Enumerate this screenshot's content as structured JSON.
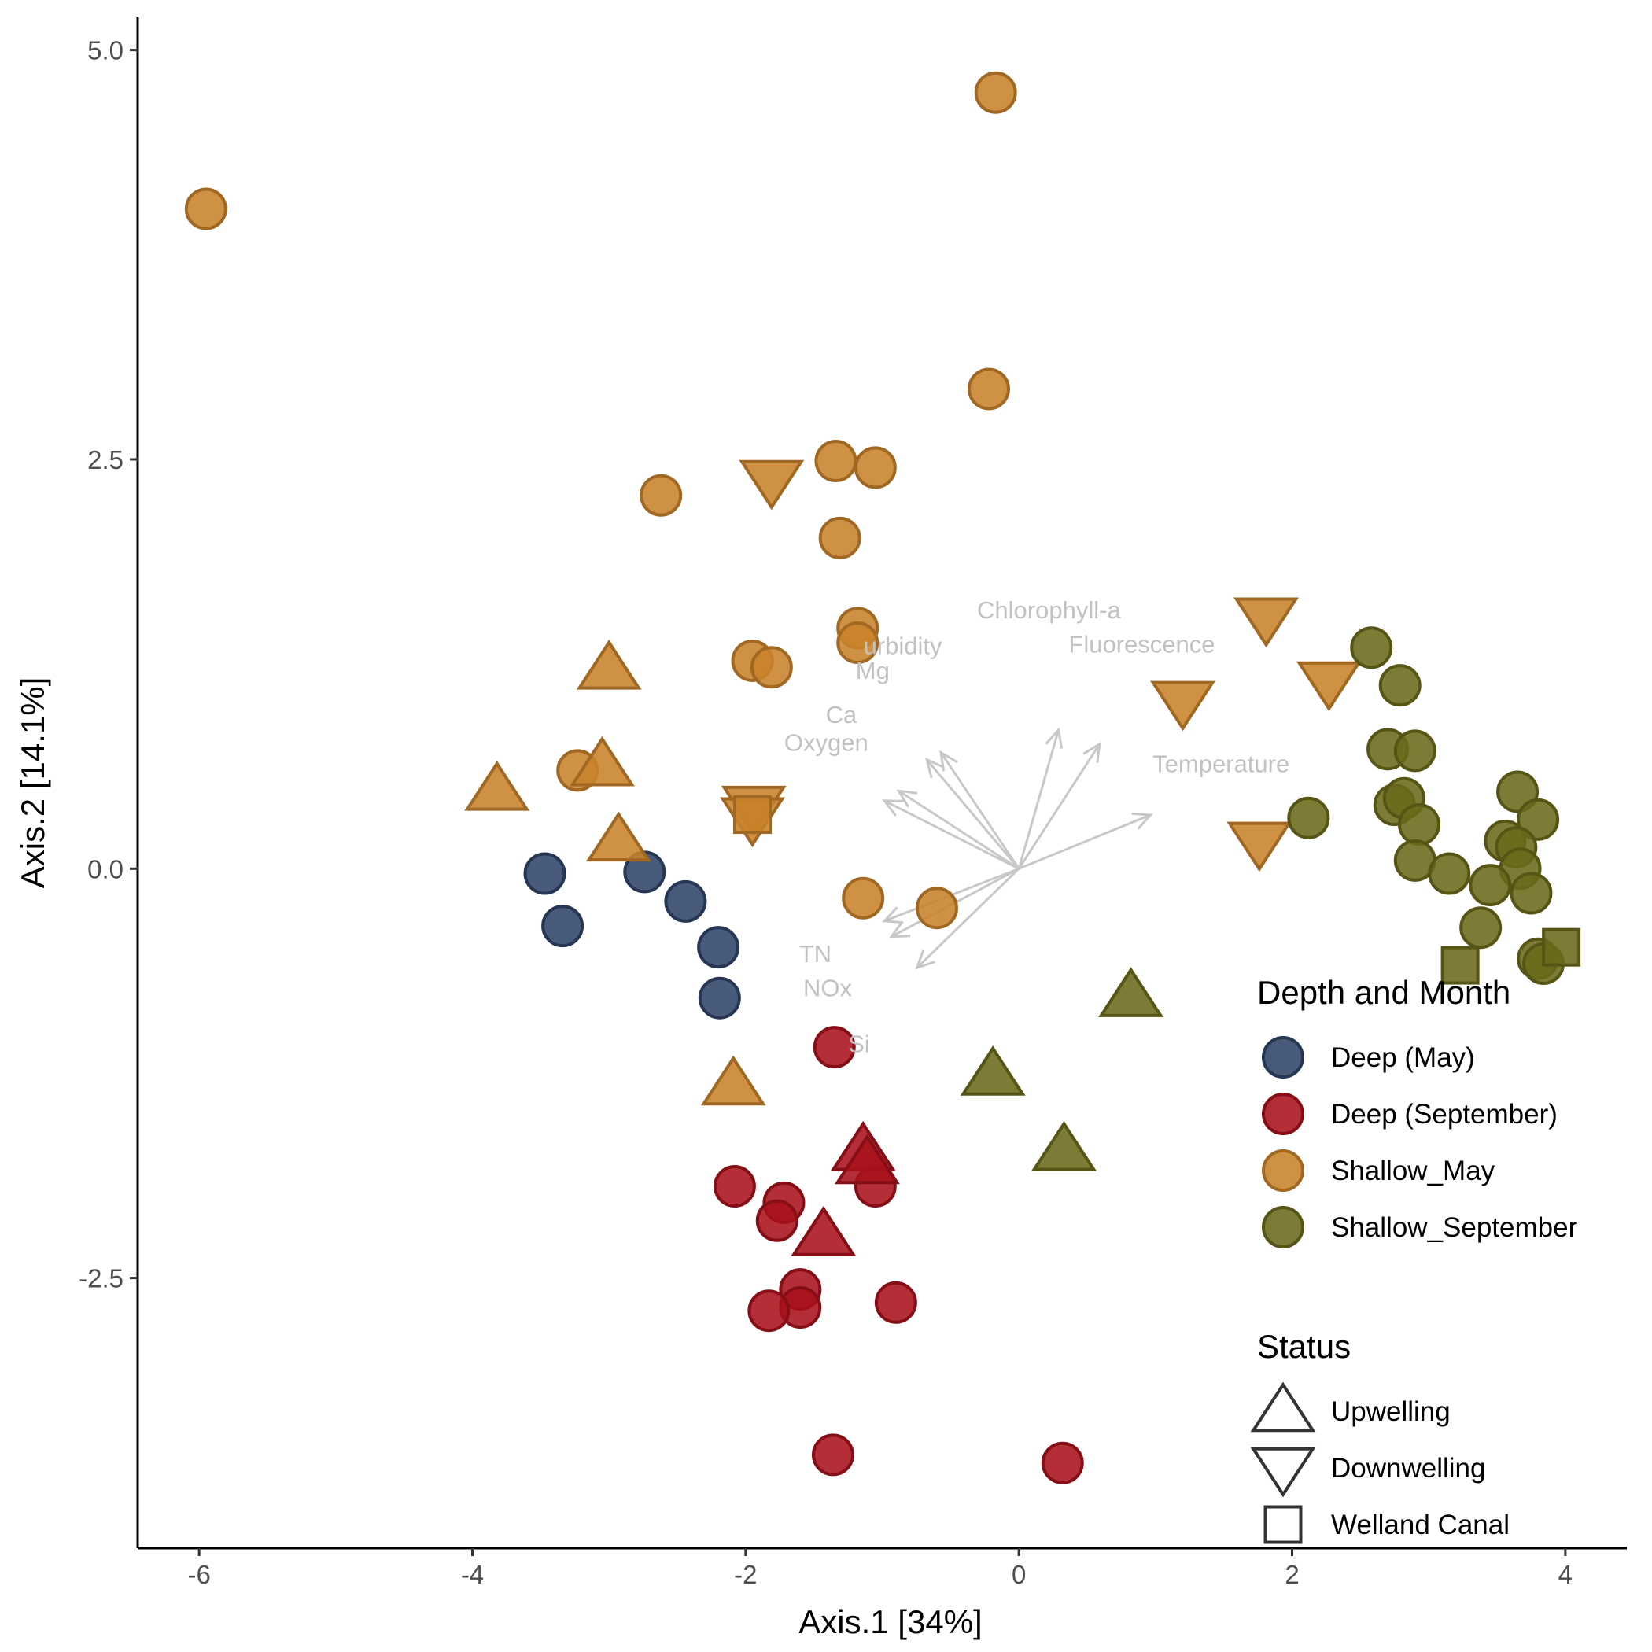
{
  "chart_data": {
    "type": "scatter",
    "xlabel": "Axis.1 [34%]",
    "ylabel": "Axis.2 [14.1%]",
    "xlim": [
      -6.45,
      4.45
    ],
    "ylim": [
      -4.15,
      5.2
    ],
    "xticks": [
      -6,
      -4,
      -2,
      0,
      2,
      4
    ],
    "xtick_labels": [
      "-6",
      "-4",
      "-2",
      "0",
      "2",
      "4"
    ],
    "yticks": [
      -2.5,
      0,
      2.5,
      5
    ],
    "ytick_labels": [
      "-2.5",
      "0.0",
      "2.5",
      "5.0"
    ],
    "grid": false,
    "legend_position": "bottom-right",
    "legend_groups": [
      {
        "title": "Depth and Month",
        "kind": "color",
        "entries": [
          {
            "label": "Deep (May)",
            "color": "#2f4468"
          },
          {
            "label": "Deep (September)",
            "color": "#a8111b"
          },
          {
            "label": "Shallow_May",
            "color": "#c8822a"
          },
          {
            "label": "Shallow_September",
            "color": "#6b6a1a"
          }
        ]
      },
      {
        "title": "Status",
        "kind": "shape",
        "entries": [
          {
            "label": "Upwelling",
            "shape": "triangle-up"
          },
          {
            "label": "Downwelling",
            "shape": "triangle-down"
          },
          {
            "label": "Welland Canal",
            "shape": "square"
          }
        ]
      }
    ],
    "series": [
      {
        "name": "Deep (May)",
        "color": "#2f4468",
        "points": [
          {
            "x": -3.47,
            "y": -0.03,
            "shape": "circle"
          },
          {
            "x": -3.34,
            "y": -0.35,
            "shape": "circle"
          },
          {
            "x": -2.74,
            "y": -0.02,
            "shape": "circle"
          },
          {
            "x": -2.44,
            "y": -0.2,
            "shape": "circle"
          },
          {
            "x": -2.2,
            "y": -0.48,
            "shape": "circle"
          },
          {
            "x": -2.19,
            "y": -0.79,
            "shape": "circle"
          }
        ]
      },
      {
        "name": "Deep (September)",
        "color": "#a8111b",
        "points": [
          {
            "x": -1.35,
            "y": -1.09,
            "shape": "circle"
          },
          {
            "x": -2.08,
            "y": -1.94,
            "shape": "circle"
          },
          {
            "x": -1.72,
            "y": -2.04,
            "shape": "circle"
          },
          {
            "x": -1.77,
            "y": -2.15,
            "shape": "circle"
          },
          {
            "x": -1.05,
            "y": -1.94,
            "shape": "circle"
          },
          {
            "x": -1.6,
            "y": -2.57,
            "shape": "circle"
          },
          {
            "x": -1.6,
            "y": -2.68,
            "shape": "circle"
          },
          {
            "x": -1.83,
            "y": -2.7,
            "shape": "circle"
          },
          {
            "x": -0.9,
            "y": -2.65,
            "shape": "circle"
          },
          {
            "x": -1.36,
            "y": -3.58,
            "shape": "circle"
          },
          {
            "x": 0.32,
            "y": -3.63,
            "shape": "circle"
          },
          {
            "x": -1.14,
            "y": -1.72,
            "shape": "triangle-up"
          },
          {
            "x": -1.11,
            "y": -1.8,
            "shape": "triangle-up"
          },
          {
            "x": -1.43,
            "y": -2.24,
            "shape": "triangle-up"
          }
        ]
      },
      {
        "name": "Shallow_May",
        "color": "#c8822a",
        "points": [
          {
            "x": -5.95,
            "y": 4.03,
            "shape": "circle"
          },
          {
            "x": -0.17,
            "y": 4.74,
            "shape": "circle"
          },
          {
            "x": -0.22,
            "y": 2.93,
            "shape": "circle"
          },
          {
            "x": -2.62,
            "y": 2.28,
            "shape": "circle"
          },
          {
            "x": -1.34,
            "y": 2.49,
            "shape": "circle"
          },
          {
            "x": -1.05,
            "y": 2.45,
            "shape": "circle"
          },
          {
            "x": -1.31,
            "y": 2.02,
            "shape": "circle"
          },
          {
            "x": -1.18,
            "y": 1.47,
            "shape": "circle"
          },
          {
            "x": -1.18,
            "y": 1.38,
            "shape": "circle"
          },
          {
            "x": -1.95,
            "y": 1.27,
            "shape": "circle"
          },
          {
            "x": -1.81,
            "y": 1.23,
            "shape": "circle"
          },
          {
            "x": -3.23,
            "y": 0.6,
            "shape": "circle"
          },
          {
            "x": -1.14,
            "y": -0.18,
            "shape": "circle"
          },
          {
            "x": -0.6,
            "y": -0.24,
            "shape": "circle"
          },
          {
            "x": -3.0,
            "y": 1.22,
            "shape": "triangle-up"
          },
          {
            "x": -3.05,
            "y": 0.63,
            "shape": "triangle-up"
          },
          {
            "x": -3.82,
            "y": 0.48,
            "shape": "triangle-up"
          },
          {
            "x": -2.93,
            "y": 0.17,
            "shape": "triangle-up"
          },
          {
            "x": -2.09,
            "y": -1.32,
            "shape": "triangle-up"
          },
          {
            "x": -1.81,
            "y": 2.37,
            "shape": "triangle-down"
          },
          {
            "x": -1.94,
            "y": 0.38,
            "shape": "triangle-down"
          },
          {
            "x": -1.95,
            "y": 0.31,
            "shape": "triangle-down"
          },
          {
            "x": 1.2,
            "y": 1.02,
            "shape": "triangle-down"
          },
          {
            "x": 1.81,
            "y": 1.53,
            "shape": "triangle-down"
          },
          {
            "x": 2.27,
            "y": 1.14,
            "shape": "triangle-down"
          },
          {
            "x": 1.76,
            "y": 0.16,
            "shape": "triangle-down"
          },
          {
            "x": -1.95,
            "y": 0.33,
            "shape": "square"
          }
        ]
      },
      {
        "name": "Shallow_September",
        "color": "#6b6a1a",
        "points": [
          {
            "x": 2.58,
            "y": 1.35,
            "shape": "circle"
          },
          {
            "x": 2.79,
            "y": 1.12,
            "shape": "circle"
          },
          {
            "x": 2.7,
            "y": 0.73,
            "shape": "circle"
          },
          {
            "x": 2.9,
            "y": 0.72,
            "shape": "circle"
          },
          {
            "x": 2.12,
            "y": 0.31,
            "shape": "circle"
          },
          {
            "x": 2.75,
            "y": 0.39,
            "shape": "circle"
          },
          {
            "x": 2.82,
            "y": 0.43,
            "shape": "circle"
          },
          {
            "x": 2.93,
            "y": 0.27,
            "shape": "circle"
          },
          {
            "x": 2.9,
            "y": 0.05,
            "shape": "circle"
          },
          {
            "x": 3.15,
            "y": -0.03,
            "shape": "circle"
          },
          {
            "x": 3.65,
            "y": 0.47,
            "shape": "circle"
          },
          {
            "x": 3.8,
            "y": 0.3,
            "shape": "circle"
          },
          {
            "x": 3.56,
            "y": 0.17,
            "shape": "circle"
          },
          {
            "x": 3.64,
            "y": 0.13,
            "shape": "circle"
          },
          {
            "x": 3.67,
            "y": 0.0,
            "shape": "circle"
          },
          {
            "x": 3.45,
            "y": -0.1,
            "shape": "circle"
          },
          {
            "x": 3.75,
            "y": -0.15,
            "shape": "circle"
          },
          {
            "x": 3.38,
            "y": -0.36,
            "shape": "circle"
          },
          {
            "x": 3.8,
            "y": -0.55,
            "shape": "circle"
          },
          {
            "x": 3.84,
            "y": -0.58,
            "shape": "circle"
          },
          {
            "x": 0.82,
            "y": -0.78,
            "shape": "triangle-up"
          },
          {
            "x": -0.19,
            "y": -1.26,
            "shape": "triangle-up"
          },
          {
            "x": 0.33,
            "y": -1.72,
            "shape": "triangle-up"
          },
          {
            "x": 3.23,
            "y": -0.59,
            "shape": "square"
          },
          {
            "x": 3.97,
            "y": -0.48,
            "shape": "square"
          }
        ]
      }
    ],
    "env_vectors": [
      {
        "label": "Chlorophyll-a",
        "x": 0.28,
        "y": 0.98
      },
      {
        "label": "Fluorescence",
        "x": 0.57,
        "y": 0.88
      },
      {
        "label": "Temperature",
        "x": 0.93,
        "y": 0.38
      },
      {
        "label": "Turbidity",
        "x": -0.55,
        "y": 0.82
      },
      {
        "label": "Mg",
        "x": -0.65,
        "y": 0.77
      },
      {
        "label": "Ca",
        "x": -0.85,
        "y": 0.55
      },
      {
        "label": "Oxygen",
        "x": -0.95,
        "y": 0.48
      },
      {
        "label": "TN",
        "x": -0.95,
        "y": -0.37
      },
      {
        "label": "NOx",
        "x": -0.9,
        "y": -0.48
      },
      {
        "label": "Si",
        "x": -0.72,
        "y": -0.7
      }
    ],
    "env_labels": [
      {
        "text": "Chlorophyll-a",
        "x": 0.22,
        "y": 1.53
      },
      {
        "text": "Fluorescence",
        "x": 0.9,
        "y": 1.32
      },
      {
        "text": "Temperature",
        "x": 1.48,
        "y": 0.59
      },
      {
        "text": "urbidity",
        "x": -0.85,
        "y": 1.31
      },
      {
        "text": "Mg",
        "x": -1.07,
        "y": 1.16
      },
      {
        "text": "Ca",
        "x": -1.3,
        "y": 0.89
      },
      {
        "text": "Oxygen",
        "x": -1.41,
        "y": 0.72
      },
      {
        "text": "TN",
        "x": -1.49,
        "y": -0.57
      },
      {
        "text": "NOx",
        "x": -1.4,
        "y": -0.78
      },
      {
        "text": "Si",
        "x": -1.17,
        "y": -1.12
      }
    ]
  }
}
